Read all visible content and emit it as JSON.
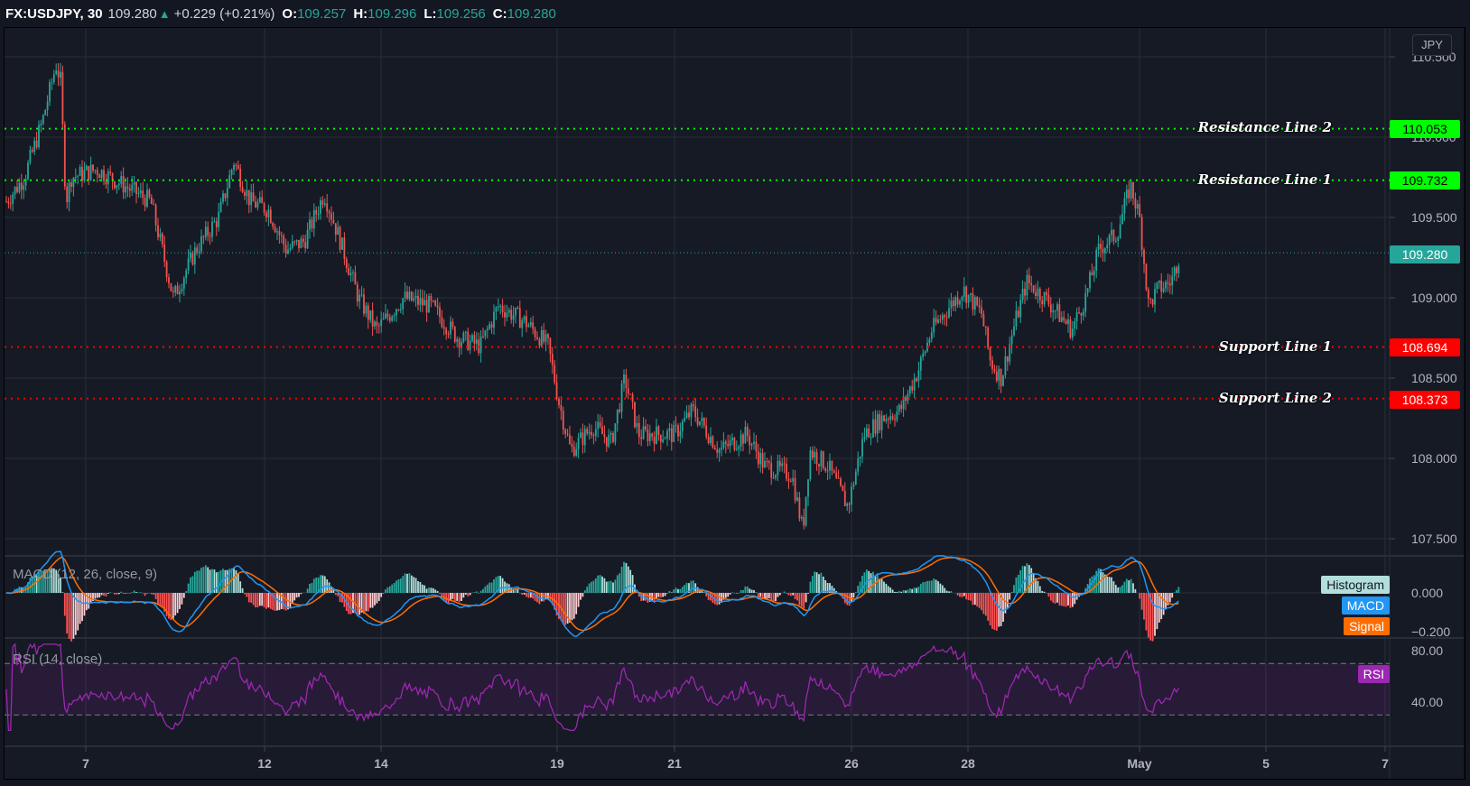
{
  "header": {
    "symbol": "FX:USDJPY, 30",
    "last": "109.280",
    "change_icon": "up-triangle-icon",
    "change": "+0.229 (+0.21%)",
    "open_label": "O:",
    "open": "109.257",
    "high_label": "H:",
    "high": "109.296",
    "low_label": "L:",
    "low": "109.256",
    "close_label": "C:",
    "close": "109.280"
  },
  "currency_badge": "JPY",
  "price_axis": {
    "ticks": [
      "110.500",
      "110.000",
      "109.500",
      "109.000",
      "108.500",
      "108.000",
      "107.500"
    ],
    "current_price_tag": "109.280"
  },
  "levels": [
    {
      "name": "Resistance Line 2",
      "price": "110.053",
      "color": "#00ff00",
      "text_color": "#000000"
    },
    {
      "name": "Resistance Line 1",
      "price": "109.732",
      "color": "#00ff00",
      "text_color": "#000000"
    },
    {
      "name": "Support Line 1",
      "price": "108.694",
      "color": "#ff0000",
      "text_color": "#ffffff"
    },
    {
      "name": "Support Line 2",
      "price": "108.373",
      "color": "#ff0000",
      "text_color": "#ffffff"
    }
  ],
  "macd": {
    "legend": "MACD (12, 26, close, 9)",
    "ticks": [
      "0.000",
      "−0.200"
    ],
    "labels": {
      "histogram": "Histogram",
      "macd": "MACD",
      "signal": "Signal"
    }
  },
  "rsi": {
    "legend": "RSI (14, close)",
    "ticks": [
      "80.00",
      "40.00"
    ],
    "label": "RSI"
  },
  "time_axis": {
    "ticks": [
      "7",
      "12",
      "14",
      "19",
      "21",
      "26",
      "28",
      "May",
      "5",
      "7"
    ]
  },
  "colors": {
    "up": "#26a69a",
    "down": "#ef5350",
    "macd": "#2196f3",
    "signal": "#ff6d00",
    "rsi": "#9c27b0",
    "background": "#161a25",
    "grid": "#2a2e39"
  },
  "chart_data": {
    "type": "candlestick",
    "title": "FX:USDJPY, 30",
    "x_ticks": [
      "7",
      "12",
      "14",
      "19",
      "21",
      "26",
      "28",
      "May",
      "5",
      "7"
    ],
    "ylim": [
      107.4,
      110.65
    ],
    "y_ticks": [
      107.5,
      108.0,
      108.5,
      109.0,
      109.5,
      110.0,
      110.5
    ],
    "close_path": [
      [
        0,
        109.6
      ],
      [
        20,
        109.75
      ],
      [
        40,
        110.1
      ],
      [
        55,
        110.45
      ],
      [
        60,
        110.35
      ],
      [
        66,
        109.6
      ],
      [
        72,
        109.75
      ],
      [
        100,
        109.8
      ],
      [
        130,
        109.7
      ],
      [
        160,
        109.6
      ],
      [
        185,
        109.0
      ],
      [
        210,
        109.3
      ],
      [
        235,
        109.5
      ],
      [
        252,
        109.85
      ],
      [
        270,
        109.6
      ],
      [
        290,
        109.55
      ],
      [
        310,
        109.3
      ],
      [
        330,
        109.35
      ],
      [
        352,
        109.65
      ],
      [
        370,
        109.35
      ],
      [
        390,
        109.0
      ],
      [
        410,
        108.8
      ],
      [
        440,
        109.0
      ],
      [
        470,
        108.95
      ],
      [
        500,
        108.75
      ],
      [
        525,
        108.7
      ],
      [
        545,
        108.95
      ],
      [
        575,
        108.85
      ],
      [
        600,
        108.7
      ],
      [
        612,
        108.35
      ],
      [
        625,
        108.05
      ],
      [
        650,
        108.2
      ],
      [
        670,
        108.1
      ],
      [
        685,
        108.5
      ],
      [
        700,
        108.15
      ],
      [
        740,
        108.15
      ],
      [
        760,
        108.3
      ],
      [
        790,
        108.05
      ],
      [
        820,
        108.15
      ],
      [
        840,
        107.95
      ],
      [
        870,
        107.9
      ],
      [
        882,
        107.55
      ],
      [
        890,
        108.05
      ],
      [
        910,
        107.95
      ],
      [
        932,
        107.7
      ],
      [
        950,
        108.15
      ],
      [
        970,
        108.25
      ],
      [
        990,
        108.3
      ],
      [
        1010,
        108.55
      ],
      [
        1025,
        108.8
      ],
      [
        1045,
        108.95
      ],
      [
        1060,
        109.05
      ],
      [
        1080,
        108.9
      ],
      [
        1090,
        108.6
      ],
      [
        1102,
        108.5
      ],
      [
        1115,
        108.8
      ],
      [
        1130,
        109.1
      ],
      [
        1150,
        109.0
      ],
      [
        1165,
        108.9
      ],
      [
        1180,
        108.8
      ],
      [
        1195,
        109.0
      ],
      [
        1210,
        109.3
      ],
      [
        1230,
        109.4
      ],
      [
        1245,
        109.7
      ],
      [
        1255,
        109.5
      ],
      [
        1265,
        108.95
      ],
      [
        1275,
        109.05
      ],
      [
        1290,
        109.1
      ],
      [
        1300,
        109.28
      ]
    ],
    "current_price": 109.28,
    "horizontal_levels": [
      {
        "label": "Resistance Line 2",
        "value": 110.053
      },
      {
        "label": "Resistance Line 1",
        "value": 109.732
      },
      {
        "label": "Support Line 1",
        "value": 108.694
      },
      {
        "label": "Support Line 2",
        "value": 108.373
      }
    ],
    "indicators": [
      {
        "name": "MACD (12, 26, close, 9)",
        "series": [
          "Histogram",
          "MACD",
          "Signal"
        ],
        "y_ticks": [
          0.0,
          -0.2
        ]
      },
      {
        "name": "RSI (14, close)",
        "series": [
          "RSI"
        ],
        "y_ticks": [
          80,
          40
        ],
        "bands": [
          30,
          70
        ]
      }
    ]
  }
}
